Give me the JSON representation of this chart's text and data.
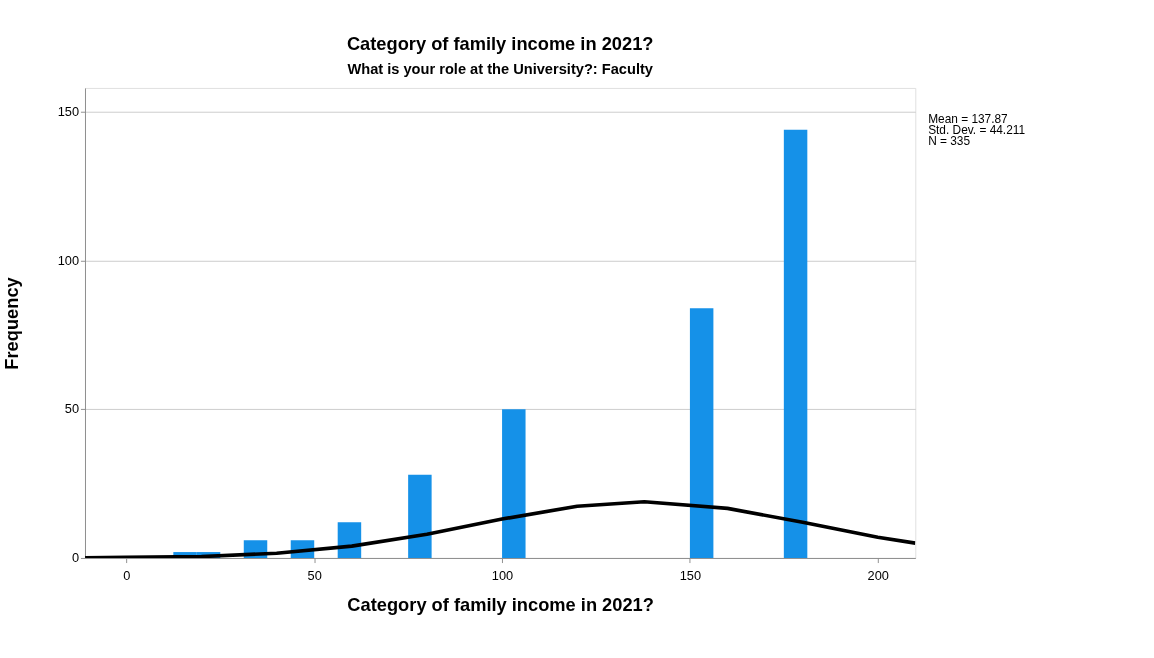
{
  "chart_data": {
    "type": "histogram",
    "title": "Category of family income in 2021?",
    "subtitle": "What is your role at the University?: Faculty",
    "xlabel": "Category of family income in 2021?",
    "ylabel": "Frequency",
    "annotations": [
      "Mean = 137.87",
      "Std. Dev. = 44.211",
      "N = 335"
    ],
    "bins": [
      12.5,
      18.75,
      25,
      31.25,
      37.5,
      43.75,
      50,
      56.25,
      62.5,
      68.75,
      75,
      81.25,
      87.5,
      93.75,
      100,
      106.25,
      112.5,
      118.75,
      125,
      131.25,
      137.5,
      143.75,
      150,
      156.25,
      162.5,
      168.75,
      175,
      181.25
    ],
    "values": [
      2,
      2,
      0,
      6,
      0,
      6,
      0,
      12,
      0,
      0,
      28,
      0,
      0,
      0,
      50,
      0,
      0,
      0,
      0,
      0,
      0,
      0,
      84,
      0,
      0,
      0,
      144
    ],
    "color": "#1591e8",
    "series": [
      {
        "type": "line",
        "color": "#000000",
        "x": [
          -11,
          0,
          20,
          40,
          60,
          80,
          100,
          120,
          137.87,
          160,
          180,
          200,
          210
        ],
        "values": [
          0.1,
          0.2,
          0.5,
          1.6,
          4.0,
          8.0,
          13.1,
          17.4,
          18.9,
          16.7,
          12.0,
          7.0,
          5.0
        ]
      }
    ],
    "xlim": [
      -11,
      210
    ],
    "xticks": [
      0,
      50,
      100,
      150,
      200
    ],
    "ylim": [
      0,
      158
    ],
    "yticks": [
      0,
      50,
      100,
      150
    ],
    "grid": "y"
  }
}
